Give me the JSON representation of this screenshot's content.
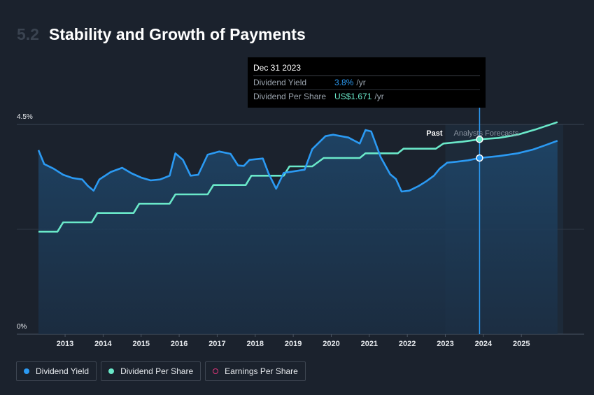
{
  "header": {
    "section_number": "5.2",
    "title": "Stability and Growth of Payments"
  },
  "tooltip": {
    "date": "Dec 31 2023",
    "rows": [
      {
        "label": "Dividend Yield",
        "value": "3.8%",
        "unit": "/yr",
        "color": "#2b9af3"
      },
      {
        "label": "Dividend Per Share",
        "value": "US$1.671",
        "unit": "/yr",
        "color": "#6ae8c9"
      }
    ]
  },
  "legend": [
    {
      "label": "Dividend Yield",
      "color": "#2b9af3",
      "style": "filled"
    },
    {
      "label": "Dividend Per Share",
      "color": "#6ae8c9",
      "style": "filled"
    },
    {
      "label": "Earnings Per Share",
      "color": "#e0357a",
      "style": "hollow"
    }
  ],
  "chart_data": {
    "type": "line",
    "xlim": [
      2012.3,
      2026.1
    ],
    "ylim": [
      0,
      4.5
    ],
    "y_unit": "%",
    "y_ticks": [
      {
        "value": 4.5,
        "label": "4.5%"
      },
      {
        "value": 0,
        "label": "0%"
      }
    ],
    "x_ticks": [
      "2013",
      "2014",
      "2015",
      "2016",
      "2017",
      "2018",
      "2019",
      "2020",
      "2021",
      "2022",
      "2023",
      "2024",
      "2025"
    ],
    "divider_labels": {
      "past": "Past",
      "forecast": "Analysts Forecasts"
    },
    "divider_x": 2023.9,
    "forecast_start_x": 2023.0,
    "grid": true,
    "series": [
      {
        "name": "Dividend Yield",
        "color": "#2b9af3",
        "points": [
          [
            2012.3,
            3.95
          ],
          [
            2012.45,
            3.65
          ],
          [
            2012.7,
            3.55
          ],
          [
            2012.95,
            3.42
          ],
          [
            2013.2,
            3.35
          ],
          [
            2013.45,
            3.32
          ],
          [
            2013.6,
            3.18
          ],
          [
            2013.75,
            3.08
          ],
          [
            2013.9,
            3.32
          ],
          [
            2014.2,
            3.48
          ],
          [
            2014.5,
            3.57
          ],
          [
            2014.75,
            3.45
          ],
          [
            2015.0,
            3.36
          ],
          [
            2015.25,
            3.3
          ],
          [
            2015.5,
            3.32
          ],
          [
            2015.75,
            3.4
          ],
          [
            2015.9,
            3.88
          ],
          [
            2016.1,
            3.74
          ],
          [
            2016.3,
            3.4
          ],
          [
            2016.5,
            3.42
          ],
          [
            2016.75,
            3.85
          ],
          [
            2017.05,
            3.92
          ],
          [
            2017.35,
            3.87
          ],
          [
            2017.55,
            3.62
          ],
          [
            2017.7,
            3.61
          ],
          [
            2017.85,
            3.74
          ],
          [
            2018.2,
            3.77
          ],
          [
            2018.35,
            3.45
          ],
          [
            2018.55,
            3.12
          ],
          [
            2018.75,
            3.46
          ],
          [
            2019.3,
            3.53
          ],
          [
            2019.5,
            3.97
          ],
          [
            2019.85,
            4.25
          ],
          [
            2020.05,
            4.28
          ],
          [
            2020.45,
            4.22
          ],
          [
            2020.75,
            4.09
          ],
          [
            2020.9,
            4.38
          ],
          [
            2021.05,
            4.35
          ],
          [
            2021.3,
            3.8
          ],
          [
            2021.55,
            3.43
          ],
          [
            2021.7,
            3.33
          ],
          [
            2021.85,
            3.06
          ],
          [
            2022.05,
            3.08
          ],
          [
            2022.3,
            3.18
          ],
          [
            2022.5,
            3.28
          ],
          [
            2022.7,
            3.4
          ],
          [
            2022.85,
            3.55
          ],
          [
            2023.05,
            3.68
          ],
          [
            2023.3,
            3.7
          ],
          [
            2023.6,
            3.73
          ],
          [
            2023.9,
            3.78
          ],
          [
            2024.4,
            3.82
          ],
          [
            2024.9,
            3.88
          ],
          [
            2025.3,
            3.96
          ],
          [
            2025.65,
            4.06
          ],
          [
            2025.95,
            4.15
          ]
        ]
      },
      {
        "name": "Dividend Per Share",
        "color": "#6ae8c9",
        "points": [
          [
            2012.3,
            2.2
          ],
          [
            2012.8,
            2.2
          ],
          [
            2012.95,
            2.4
          ],
          [
            2013.7,
            2.4
          ],
          [
            2013.85,
            2.6
          ],
          [
            2014.8,
            2.6
          ],
          [
            2014.95,
            2.8
          ],
          [
            2015.75,
            2.8
          ],
          [
            2015.9,
            3.0
          ],
          [
            2016.75,
            3.0
          ],
          [
            2016.9,
            3.2
          ],
          [
            2017.75,
            3.2
          ],
          [
            2017.9,
            3.4
          ],
          [
            2018.75,
            3.4
          ],
          [
            2018.9,
            3.6
          ],
          [
            2019.5,
            3.6
          ],
          [
            2019.8,
            3.78
          ],
          [
            2020.75,
            3.78
          ],
          [
            2020.9,
            3.88
          ],
          [
            2021.75,
            3.88
          ],
          [
            2021.9,
            3.98
          ],
          [
            2022.75,
            3.98
          ],
          [
            2022.95,
            4.09
          ],
          [
            2023.45,
            4.13
          ],
          [
            2023.9,
            4.18
          ],
          [
            2024.4,
            4.21
          ],
          [
            2024.9,
            4.28
          ],
          [
            2025.4,
            4.4
          ],
          [
            2025.95,
            4.55
          ]
        ]
      }
    ],
    "markers": [
      {
        "series": "Dividend Yield",
        "x": 2023.9,
        "y": 3.78
      },
      {
        "series": "Dividend Per Share",
        "x": 2023.9,
        "y": 4.18
      }
    ]
  }
}
